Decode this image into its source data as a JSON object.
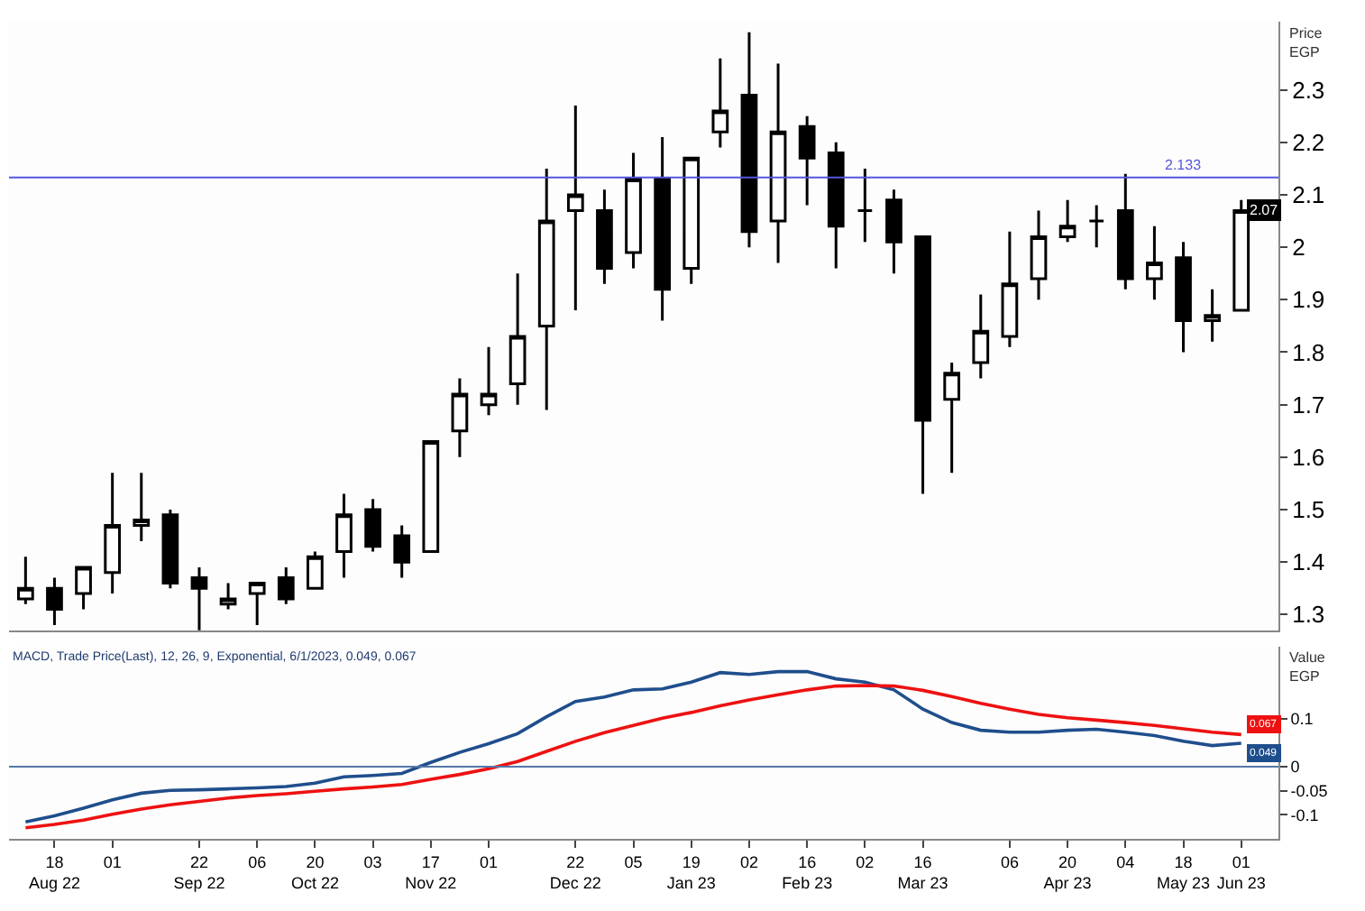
{
  "chart_data": [
    {
      "type": "candlestick",
      "ylabel": "Price\nEGP",
      "color": "#000000",
      "legend": false,
      "grid": false,
      "tick_labels": "y",
      "x": [
        "2022-08-11",
        "2022-08-18",
        "2022-08-25",
        "2022-09-01",
        "2022-09-08",
        "2022-09-15",
        "2022-09-22",
        "2022-09-29",
        "2022-10-06",
        "2022-10-13",
        "2022-10-20",
        "2022-10-27",
        "2022-11-03",
        "2022-11-10",
        "2022-11-17",
        "2022-11-24",
        "2022-12-01",
        "2022-12-08",
        "2022-12-15",
        "2022-12-22",
        "2022-12-29",
        "2023-01-05",
        "2023-01-12",
        "2023-01-19",
        "2023-01-26",
        "2023-02-02",
        "2023-02-09",
        "2023-02-16",
        "2023-02-23",
        "2023-03-02",
        "2023-03-09",
        "2023-03-16",
        "2023-03-23",
        "2023-03-30",
        "2023-04-06",
        "2023-04-13",
        "2023-04-20",
        "2023-04-27",
        "2023-05-04",
        "2023-05-11",
        "2023-05-18",
        "2023-05-25",
        "2023-06-01"
      ],
      "ohlc": [
        [
          1.33,
          1.41,
          1.32,
          1.35
        ],
        [
          1.35,
          1.37,
          1.28,
          1.31
        ],
        [
          1.34,
          1.39,
          1.31,
          1.39
        ],
        [
          1.38,
          1.57,
          1.34,
          1.47
        ],
        [
          1.47,
          1.57,
          1.44,
          1.48
        ],
        [
          1.49,
          1.5,
          1.35,
          1.36
        ],
        [
          1.37,
          1.39,
          1.26,
          1.35
        ],
        [
          1.32,
          1.36,
          1.31,
          1.33
        ],
        [
          1.34,
          1.36,
          1.28,
          1.36
        ],
        [
          1.37,
          1.39,
          1.32,
          1.33
        ],
        [
          1.35,
          1.42,
          1.35,
          1.41
        ],
        [
          1.42,
          1.53,
          1.37,
          1.49
        ],
        [
          1.5,
          1.52,
          1.42,
          1.43
        ],
        [
          1.45,
          1.47,
          1.37,
          1.4
        ],
        [
          1.42,
          1.63,
          1.42,
          1.63
        ],
        [
          1.65,
          1.75,
          1.6,
          1.72
        ],
        [
          1.7,
          1.81,
          1.68,
          1.72
        ],
        [
          1.74,
          1.95,
          1.7,
          1.83
        ],
        [
          1.85,
          2.15,
          1.69,
          2.05
        ],
        [
          2.07,
          2.27,
          1.88,
          2.1
        ],
        [
          2.07,
          2.11,
          1.93,
          1.96
        ],
        [
          1.99,
          2.18,
          1.96,
          2.13
        ],
        [
          2.13,
          2.21,
          1.86,
          1.92
        ],
        [
          1.96,
          2.17,
          1.93,
          2.17
        ],
        [
          2.22,
          2.36,
          2.19,
          2.26
        ],
        [
          2.29,
          2.41,
          2.0,
          2.03
        ],
        [
          2.05,
          2.35,
          1.97,
          2.22
        ],
        [
          2.23,
          2.25,
          2.08,
          2.17
        ],
        [
          2.18,
          2.2,
          1.96,
          2.04
        ],
        [
          2.07,
          2.15,
          2.01,
          2.07
        ],
        [
          2.09,
          2.11,
          1.95,
          2.01
        ],
        [
          2.02,
          2.02,
          1.53,
          1.67
        ],
        [
          1.71,
          1.78,
          1.57,
          1.76
        ],
        [
          1.78,
          1.91,
          1.75,
          1.84
        ],
        [
          1.83,
          2.03,
          1.81,
          1.93
        ],
        [
          1.94,
          2.07,
          1.9,
          2.02
        ],
        [
          2.02,
          2.09,
          2.01,
          2.04
        ],
        [
          2.05,
          2.08,
          2.0,
          2.05
        ],
        [
          2.07,
          2.14,
          1.92,
          1.94
        ],
        [
          1.94,
          2.04,
          1.9,
          1.97
        ],
        [
          1.98,
          2.01,
          1.8,
          1.86
        ],
        [
          1.86,
          1.92,
          1.82,
          1.87
        ],
        [
          1.88,
          2.09,
          1.88,
          2.07
        ]
      ],
      "xlim": [
        "2022-08-07",
        "2023-06-10"
      ],
      "ylim": [
        1.27,
        2.43
      ],
      "yticks": [
        1.3,
        1.4,
        1.5,
        1.6,
        1.7,
        1.8,
        1.9,
        {
          "value": 2.0,
          "label": "2"
        },
        2.1,
        2.2,
        2.3
      ],
      "ref_lines": [
        {
          "axis": "y",
          "value": 2.133,
          "label": "2.133",
          "color": "#5555dd"
        }
      ],
      "annotations": [
        {
          "text": "2.07",
          "x": "2023-06-01",
          "y": 2.07
        }
      ]
    },
    {
      "type": "line",
      "title": "MACD, Trade Price(Last), 12, 26, 9, Exponential, 6/1/2023, 0.049, 0.067",
      "ylabel": "Value\nEGP",
      "legend": false,
      "grid": false,
      "marker": "none",
      "line_style": "solid",
      "x": [
        "2022-08-11",
        "2022-08-18",
        "2022-08-25",
        "2022-09-01",
        "2022-09-08",
        "2022-09-15",
        "2022-09-22",
        "2022-09-29",
        "2022-10-06",
        "2022-10-13",
        "2022-10-20",
        "2022-10-27",
        "2022-11-03",
        "2022-11-10",
        "2022-11-17",
        "2022-11-24",
        "2022-12-01",
        "2022-12-08",
        "2022-12-15",
        "2022-12-22",
        "2022-12-29",
        "2023-01-05",
        "2023-01-12",
        "2023-01-19",
        "2023-01-26",
        "2023-02-02",
        "2023-02-09",
        "2023-02-16",
        "2023-02-23",
        "2023-03-02",
        "2023-03-09",
        "2023-03-16",
        "2023-03-23",
        "2023-03-30",
        "2023-04-06",
        "2023-04-13",
        "2023-04-20",
        "2023-04-27",
        "2023-05-04",
        "2023-05-11",
        "2023-05-18",
        "2023-05-25",
        "2023-06-01"
      ],
      "series": [
        {
          "color": "#1f4e8c",
          "values": [
            -0.115,
            -0.102,
            -0.086,
            -0.069,
            -0.055,
            -0.049,
            -0.048,
            -0.046,
            -0.044,
            -0.041,
            -0.034,
            -0.021,
            -0.018,
            -0.014,
            0.009,
            0.03,
            0.048,
            0.069,
            0.104,
            0.136,
            0.145,
            0.16,
            0.162,
            0.176,
            0.196,
            0.192,
            0.198,
            0.198,
            0.183,
            0.176,
            0.16,
            0.12,
            0.092,
            0.076,
            0.072,
            0.072,
            0.076,
            0.078,
            0.072,
            0.065,
            0.053,
            0.044,
            0.049
          ]
        },
        {
          "color": "#ee1111",
          "values": [
            -0.127,
            -0.12,
            -0.111,
            -0.099,
            -0.088,
            -0.079,
            -0.072,
            -0.065,
            -0.06,
            -0.056,
            -0.051,
            -0.046,
            -0.042,
            -0.037,
            -0.026,
            -0.016,
            -0.004,
            0.011,
            0.032,
            0.053,
            0.071,
            0.086,
            0.101,
            0.113,
            0.127,
            0.139,
            0.15,
            0.16,
            0.168,
            0.169,
            0.168,
            0.159,
            0.146,
            0.132,
            0.12,
            0.109,
            0.102,
            0.097,
            0.092,
            0.086,
            0.079,
            0.072,
            0.067
          ]
        }
      ],
      "xlim": [
        "2022-08-07",
        "2023-06-10"
      ],
      "ylim": [
        -0.15,
        0.25
      ],
      "yticks": [
        -0.1,
        -0.05,
        0,
        0.1
      ],
      "xticks": [
        {
          "value": "2022-08-18",
          "label": "18\nAug 22"
        },
        {
          "value": "2022-09-01",
          "label": "01"
        },
        {
          "value": "2022-09-22",
          "label": "22\nSep 22"
        },
        {
          "value": "2022-10-06",
          "label": "06"
        },
        {
          "value": "2022-10-20",
          "label": "20\nOct 22"
        },
        {
          "value": "2022-11-03",
          "label": "03"
        },
        {
          "value": "2022-11-17",
          "label": "17\nNov 22"
        },
        {
          "value": "2022-12-01",
          "label": "01"
        },
        {
          "value": "2022-12-22",
          "label": "22\nDec 22"
        },
        {
          "value": "2023-01-05",
          "label": "05"
        },
        {
          "value": "2023-01-19",
          "label": "19\nJan 23"
        },
        {
          "value": "2023-02-02",
          "label": "02"
        },
        {
          "value": "2023-02-16",
          "label": "16\nFeb 23"
        },
        {
          "value": "2023-03-02",
          "label": "02"
        },
        {
          "value": "2023-03-16",
          "label": "16\nMar 23"
        },
        {
          "value": "2023-04-06",
          "label": "06"
        },
        {
          "value": "2023-04-20",
          "label": "20\nApr 23"
        },
        {
          "value": "2023-05-04",
          "label": "04"
        },
        {
          "value": "2023-05-18",
          "label": "18\nMay 23"
        },
        {
          "value": "2023-06-01",
          "label": "01\nJun 23"
        }
      ],
      "ref_lines": [
        {
          "axis": "y",
          "value": 0,
          "color": "#5577aa"
        }
      ],
      "annotations": [
        {
          "text": "0.049",
          "x": "2023-06-01",
          "y": 0.049
        },
        {
          "text": "0.067",
          "x": "2023-06-01",
          "y": 0.067
        }
      ]
    }
  ]
}
